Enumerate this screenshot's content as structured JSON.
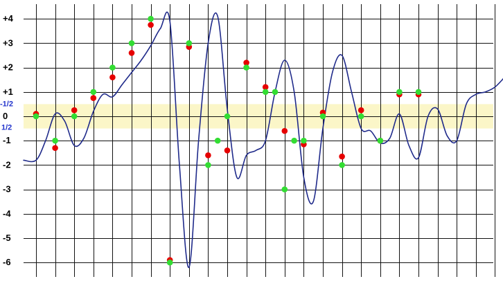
{
  "chart_data": {
    "type": "line",
    "y_ticks": [
      4,
      3,
      2,
      1,
      0,
      -1,
      -2,
      -3,
      -4,
      -5,
      -6
    ],
    "y_tick_labels": [
      "+4",
      "+3",
      "+2",
      "+1",
      "0",
      "-1",
      "-2",
      "-3",
      "-4",
      "-5",
      "-6"
    ],
    "ylim": [
      -6.5,
      4.4
    ],
    "band": {
      "from": -0.5,
      "to": 0.5,
      "labels": [
        "-1/2",
        "1/2"
      ]
    },
    "vertical_gridlines": 25,
    "grid": true,
    "x": [
      0,
      0.5,
      1,
      1.5,
      2,
      2.5,
      3,
      3.5,
      4,
      4.5,
      5,
      5.5,
      6,
      6.5,
      7,
      7.5,
      8,
      8.5,
      9,
      9.5,
      10,
      10.5,
      11,
      11.5,
      12,
      12.5,
      13,
      13.5,
      14,
      14.5,
      15,
      15.5,
      16,
      16.5,
      17,
      17.5,
      18,
      18.5,
      19,
      19.5,
      20,
      20.5,
      21,
      21.5,
      22,
      22.5,
      23,
      23.5,
      24,
      24.5
    ],
    "values": [
      -1.8,
      -1.0,
      0.1,
      -0.2,
      -1.2,
      -0.9,
      0.2,
      0.9,
      0.8,
      1.3,
      1.8,
      2.3,
      2.9,
      3.6,
      3.9,
      -2.0,
      -6.2,
      -1.0,
      3.0,
      4.1,
      0.3,
      -2.5,
      -1.6,
      -1.4,
      -1.0,
      1.0,
      2.3,
      1.0,
      -2.5,
      -3.5,
      -0.5,
      1.8,
      2.5,
      1.0,
      -0.5,
      -0.6,
      -1.1,
      -0.9,
      0.1,
      -1.2,
      -1.7,
      0.0,
      0.3,
      -0.8,
      -1.0,
      0.5,
      0.9,
      1.0,
      1.2,
      1.6
    ],
    "markers_red": [
      [
        0,
        0.1
      ],
      [
        1,
        -1.3
      ],
      [
        2,
        0.25
      ],
      [
        3,
        0.75
      ],
      [
        4,
        1.6
      ],
      [
        5,
        2.6
      ],
      [
        6,
        3.75
      ],
      [
        7,
        -5.9
      ],
      [
        8,
        2.85
      ],
      [
        9,
        -1.6
      ],
      [
        10,
        -1.4
      ],
      [
        11,
        2.2
      ],
      [
        12,
        1.2
      ],
      [
        13,
        -0.6
      ],
      [
        14,
        -1.15
      ],
      [
        15,
        0.15
      ],
      [
        16,
        -1.65
      ],
      [
        17,
        0.25
      ],
      [
        18,
        -1.0
      ],
      [
        19,
        0.9
      ],
      [
        20,
        0.9
      ]
    ],
    "markers_green": [
      [
        0,
        0.0
      ],
      [
        1,
        -1.0
      ],
      [
        2,
        0.0
      ],
      [
        3,
        1.0
      ],
      [
        4,
        2.0
      ],
      [
        5,
        3.0
      ],
      [
        6,
        4.0
      ],
      [
        7,
        -6.0
      ],
      [
        8,
        3.0
      ],
      [
        9,
        -2.0
      ],
      [
        9.5,
        -1.0
      ],
      [
        10,
        0.0
      ],
      [
        11,
        2.0
      ],
      [
        12,
        1.0
      ],
      [
        12.5,
        1.0
      ],
      [
        13,
        -3.0
      ],
      [
        13.5,
        -1.0
      ],
      [
        14,
        -1.0
      ],
      [
        15,
        0.0
      ],
      [
        16,
        -2.0
      ],
      [
        17,
        0.0
      ],
      [
        18,
        -1.0
      ],
      [
        19,
        1.0
      ],
      [
        20,
        1.0
      ]
    ],
    "colors": {
      "line": "#1f2a8a",
      "band": "#fbf6c8",
      "red_marker": "#e60000",
      "green_marker": "#33dd33",
      "half_label": "#2233cc"
    },
    "title": "",
    "xlabel": "",
    "ylabel": ""
  }
}
